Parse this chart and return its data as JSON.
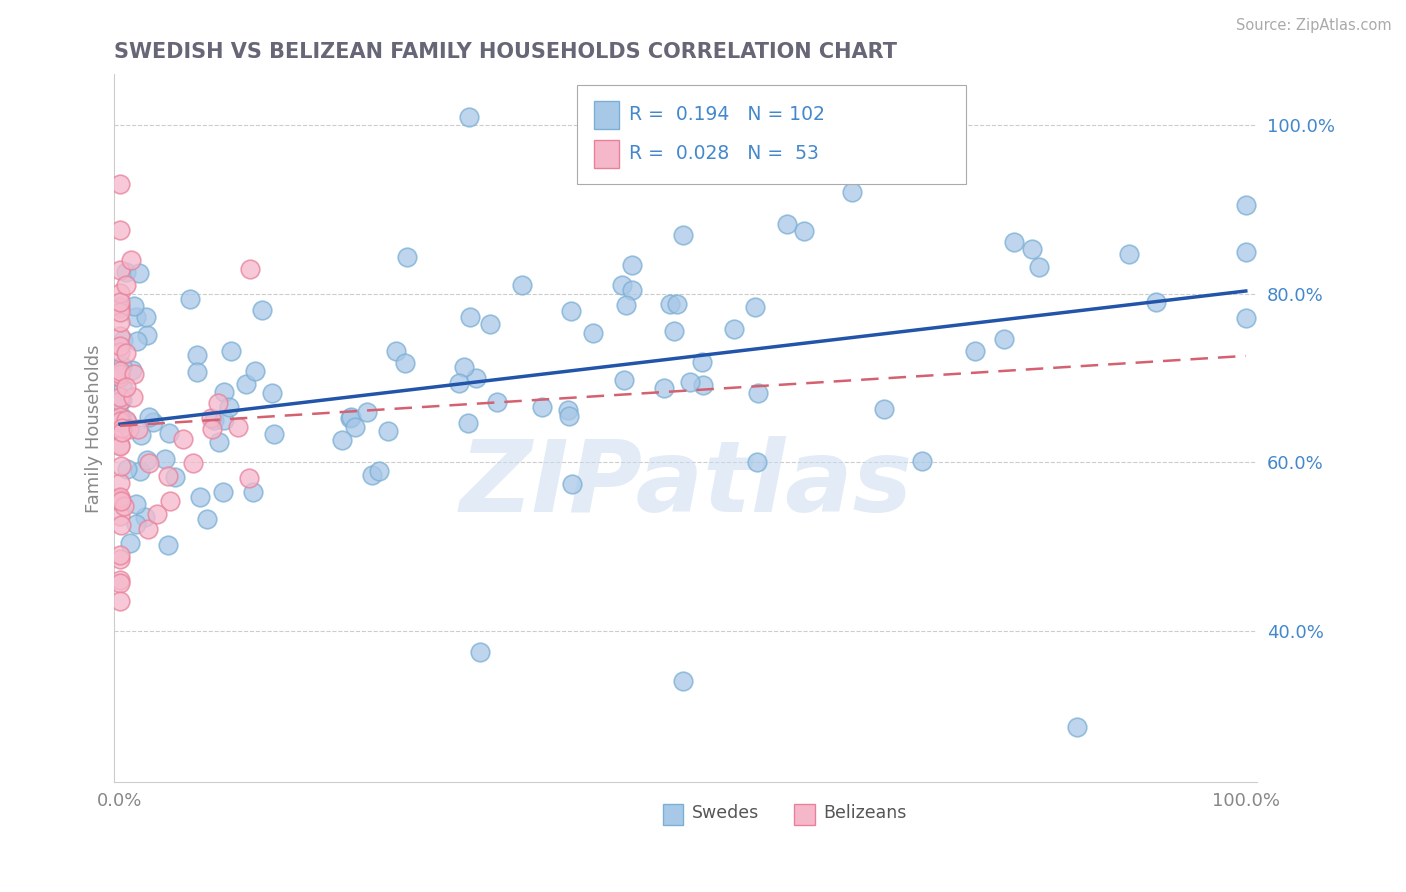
{
  "title": "SWEDISH VS BELIZEAN FAMILY HOUSEHOLDS CORRELATION CHART",
  "source": "Source: ZipAtlas.com",
  "ylabel": "Family Households",
  "y_ticks_right": [
    0.4,
    0.6,
    0.8,
    1.0
  ],
  "y_tick_labels_right": [
    "40.0%",
    "60.0%",
    "80.0%",
    "100.0%"
  ],
  "blue_color": "#a8c8e8",
  "blue_edge": "#7bafd4",
  "pink_color": "#f5b8cb",
  "pink_edge": "#e8809a",
  "trend_blue_color": "#2255aa",
  "trend_pink_color": "#d46070",
  "legend_R_blue": "0.194",
  "legend_N_blue": "102",
  "legend_R_pink": "0.028",
  "legend_N_pink": "53",
  "legend_label_blue": "Swedes",
  "legend_label_pink": "Belizeans",
  "watermark": "ZIPatlas",
  "grid_color": "#cccccc",
  "bg_color": "#ffffff",
  "title_color": "#666677",
  "axis_label_color": "#888888",
  "right_tick_color": "#4488cc",
  "xtick_color": "#888888",
  "ylim_low": 0.22,
  "ylim_high": 1.06,
  "xlim_low": -0.005,
  "xlim_high": 1.01,
  "blue_line_x0": 0.0,
  "blue_line_y0": 0.645,
  "blue_line_x1": 1.0,
  "blue_line_y1": 0.803,
  "pink_line_x0": 0.0,
  "pink_line_y0": 0.643,
  "pink_line_x1": 1.0,
  "pink_line_y1": 0.726
}
